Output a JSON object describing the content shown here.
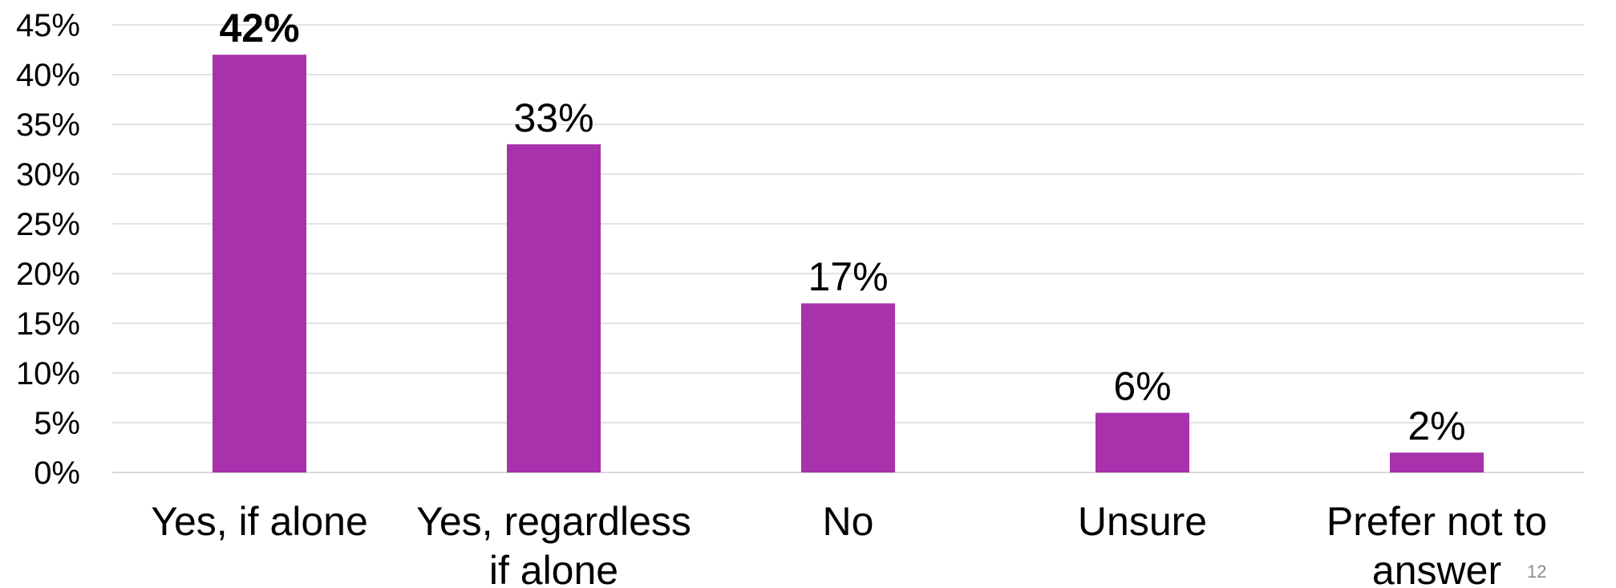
{
  "chart_data": {
    "type": "bar",
    "categories": [
      "Yes, if alone",
      "Yes, regardless if alone",
      "No",
      "Unsure",
      "Prefer not to answer"
    ],
    "category_lines": [
      [
        "Yes, if alone"
      ],
      [
        "Yes, regardless",
        "if alone"
      ],
      [
        "No"
      ],
      [
        "Unsure"
      ],
      [
        "Prefer not to",
        "answer"
      ]
    ],
    "values": [
      42,
      33,
      17,
      6,
      2
    ],
    "data_labels": [
      "42%",
      "33%",
      "17%",
      "6%",
      "2%"
    ],
    "bold_labels": [
      true,
      false,
      false,
      false,
      false
    ],
    "y_ticks": [
      "0%",
      "5%",
      "10%",
      "15%",
      "20%",
      "25%",
      "30%",
      "35%",
      "40%",
      "45%"
    ],
    "ylim": [
      0,
      45
    ],
    "grid": true,
    "bar_color": "#a832ac",
    "grid_color": "#d9d9d9",
    "text_color": "#000000",
    "title": "",
    "xlabel": "",
    "ylabel": ""
  },
  "slide_number": "12"
}
